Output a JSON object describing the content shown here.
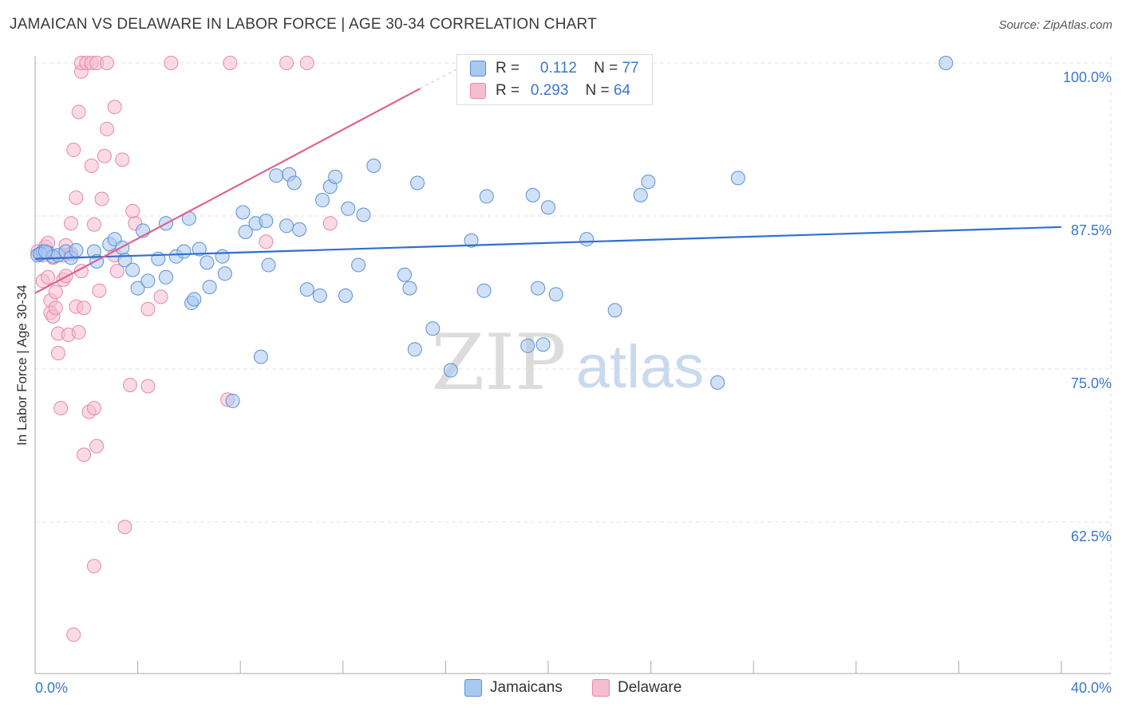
{
  "title": "JAMAICAN VS DELAWARE IN LABOR FORCE | AGE 30-34 CORRELATION CHART",
  "source": "Source: ZipAtlas.com",
  "watermark": {
    "zip": "ZIP",
    "atlas": "atlas"
  },
  "colors": {
    "jamaican_fill": "#a9c8f0",
    "jamaican_stroke": "#5b8fd6",
    "jamaican_line": "#2f6fd0",
    "delaware_fill": "#f6bcd0",
    "delaware_stroke": "#e688a8",
    "delaware_line": "#e0628f",
    "axis_label": "#3a78c9"
  },
  "legend": {
    "r_label": "R =",
    "n_label": "N =",
    "jamaican": {
      "r": "0.112",
      "n": "77"
    },
    "delaware": {
      "r": "0.293",
      "n": "64"
    }
  },
  "chart_data": {
    "type": "scatter",
    "title": "JAMAICAN VS DELAWARE IN LABOR FORCE | AGE 30-34 CORRELATION CHART",
    "xlabel": "",
    "ylabel": "In Labor Force | Age 30-34",
    "xlim": [
      0,
      40
    ],
    "ylim": [
      51,
      102
    ],
    "x_tick_labels": [
      "0.0%",
      "40.0%"
    ],
    "y_ticks": [
      {
        "value": 100,
        "label": "100.0%"
      },
      {
        "value": 87.5,
        "label": "87.5%"
      },
      {
        "value": 75,
        "label": "75.0%"
      },
      {
        "value": 62.5,
        "label": "62.5%"
      }
    ],
    "grid": true,
    "series": [
      {
        "name": "Jamaicans",
        "r": 0.112,
        "n": 77,
        "trend": {
          "x0": 0,
          "y0": 84.0,
          "x1": 40,
          "y1": 86.6
        },
        "points": [
          [
            0.1,
            84.3
          ],
          [
            0.3,
            84.6
          ],
          [
            0.5,
            84.5
          ],
          [
            0.7,
            84.2
          ],
          [
            0.9,
            84.3
          ],
          [
            1.2,
            84.6
          ],
          [
            1.4,
            84.1
          ],
          [
            1.6,
            84.7
          ],
          [
            2.3,
            84.6
          ],
          [
            2.4,
            83.8
          ],
          [
            2.9,
            85.2
          ],
          [
            3.1,
            85.6
          ],
          [
            3.4,
            84.9
          ],
          [
            3.5,
            83.9
          ],
          [
            3.8,
            83.1
          ],
          [
            4.0,
            81.6
          ],
          [
            4.2,
            86.3
          ],
          [
            4.4,
            82.2
          ],
          [
            4.8,
            84.0
          ],
          [
            5.1,
            86.9
          ],
          [
            5.1,
            82.5
          ],
          [
            5.5,
            84.2
          ],
          [
            5.8,
            84.6
          ],
          [
            6.0,
            87.3
          ],
          [
            6.1,
            80.4
          ],
          [
            6.2,
            80.7
          ],
          [
            6.4,
            84.8
          ],
          [
            6.7,
            83.7
          ],
          [
            6.8,
            81.7
          ],
          [
            7.3,
            84.2
          ],
          [
            7.4,
            82.8
          ],
          [
            7.7,
            72.4
          ],
          [
            8.1,
            87.8
          ],
          [
            8.2,
            86.2
          ],
          [
            8.6,
            86.9
          ],
          [
            8.8,
            76.0
          ],
          [
            9.0,
            87.1
          ],
          [
            9.1,
            83.5
          ],
          [
            9.4,
            90.8
          ],
          [
            9.8,
            86.7
          ],
          [
            9.9,
            90.9
          ],
          [
            10.1,
            90.2
          ],
          [
            10.3,
            86.4
          ],
          [
            10.6,
            81.5
          ],
          [
            11.1,
            81.0
          ],
          [
            11.2,
            88.8
          ],
          [
            11.5,
            89.9
          ],
          [
            11.7,
            90.7
          ],
          [
            12.1,
            81.0
          ],
          [
            12.2,
            88.1
          ],
          [
            12.6,
            83.5
          ],
          [
            12.8,
            87.6
          ],
          [
            13.2,
            91.6
          ],
          [
            14.4,
            82.7
          ],
          [
            14.6,
            81.6
          ],
          [
            14.8,
            76.6
          ],
          [
            14.9,
            90.2
          ],
          [
            15.5,
            78.3
          ],
          [
            16.2,
            74.9
          ],
          [
            17.0,
            85.5
          ],
          [
            17.5,
            81.4
          ],
          [
            17.6,
            89.1
          ],
          [
            19.2,
            76.9
          ],
          [
            19.4,
            89.2
          ],
          [
            19.6,
            81.6
          ],
          [
            19.8,
            77.0
          ],
          [
            20.0,
            88.2
          ],
          [
            20.3,
            81.1
          ],
          [
            21.5,
            85.6
          ],
          [
            22.6,
            79.8
          ],
          [
            23.6,
            89.2
          ],
          [
            23.9,
            90.3
          ],
          [
            26.6,
            73.9
          ],
          [
            27.4,
            90.6
          ],
          [
            35.5,
            100.0
          ],
          [
            0.2,
            84.4
          ],
          [
            0.4,
            84.6
          ]
        ]
      },
      {
        "name": "Delaware",
        "r": 0.293,
        "n": 64,
        "trend": {
          "x0": 0,
          "y0": 81.2,
          "x1": 15.0,
          "y1": 97.9
        },
        "points": [
          [
            0.1,
            84.6
          ],
          [
            0.2,
            84.4
          ],
          [
            0.3,
            82.2
          ],
          [
            0.3,
            84.3
          ],
          [
            0.4,
            85.0
          ],
          [
            0.5,
            82.5
          ],
          [
            0.5,
            85.3
          ],
          [
            0.6,
            80.6
          ],
          [
            0.6,
            79.6
          ],
          [
            0.7,
            79.3
          ],
          [
            0.7,
            84.1
          ],
          [
            0.8,
            80.0
          ],
          [
            0.8,
            81.3
          ],
          [
            0.9,
            77.9
          ],
          [
            0.9,
            76.3
          ],
          [
            1.0,
            71.8
          ],
          [
            1.1,
            82.3
          ],
          [
            1.1,
            84.3
          ],
          [
            1.2,
            82.6
          ],
          [
            1.2,
            85.1
          ],
          [
            1.3,
            77.8
          ],
          [
            1.4,
            84.4
          ],
          [
            1.4,
            86.9
          ],
          [
            1.5,
            92.9
          ],
          [
            1.6,
            89.0
          ],
          [
            1.6,
            80.1
          ],
          [
            1.7,
            78.0
          ],
          [
            1.7,
            96.0
          ],
          [
            1.8,
            83.0
          ],
          [
            1.9,
            80.0
          ],
          [
            1.8,
            99.3
          ],
          [
            1.8,
            100.0
          ],
          [
            1.9,
            68.0
          ],
          [
            2.0,
            100.0
          ],
          [
            2.1,
            71.5
          ],
          [
            2.2,
            91.6
          ],
          [
            2.3,
            86.8
          ],
          [
            2.3,
            71.8
          ],
          [
            2.2,
            100.0
          ],
          [
            2.4,
            100.0
          ],
          [
            2.4,
            68.7
          ],
          [
            2.5,
            81.4
          ],
          [
            2.6,
            88.9
          ],
          [
            2.7,
            92.4
          ],
          [
            2.8,
            100.0
          ],
          [
            2.8,
            94.6
          ],
          [
            3.1,
            96.4
          ],
          [
            3.1,
            84.3
          ],
          [
            3.2,
            83.0
          ],
          [
            3.4,
            92.1
          ],
          [
            3.5,
            62.1
          ],
          [
            3.7,
            73.7
          ],
          [
            3.8,
            87.9
          ],
          [
            3.9,
            86.9
          ],
          [
            4.4,
            73.6
          ],
          [
            4.4,
            79.9
          ],
          [
            4.9,
            80.9
          ],
          [
            5.3,
            100.0
          ],
          [
            7.5,
            72.5
          ],
          [
            7.6,
            100.0
          ],
          [
            9.0,
            85.4
          ],
          [
            9.8,
            100.0
          ],
          [
            10.6,
            100.0
          ],
          [
            11.5,
            86.9
          ]
        ]
      }
    ],
    "extra_pink": [
      [
        2.3,
        58.9
      ],
      [
        1.5,
        53.3
      ]
    ]
  },
  "bottom_legend": {
    "jamaicans": "Jamaicans",
    "delaware": "Delaware"
  }
}
